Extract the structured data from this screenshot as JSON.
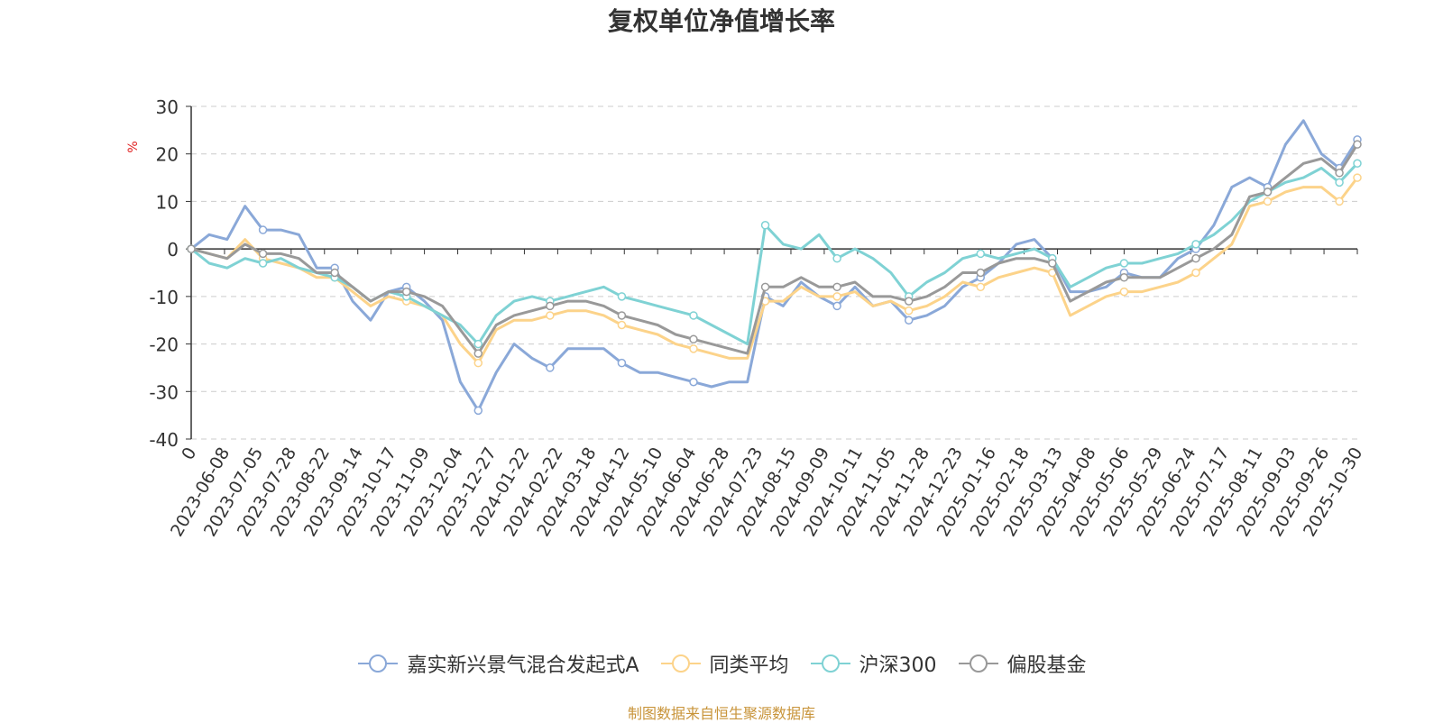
{
  "chart_data": {
    "type": "line",
    "title": "复权单位净值增长率",
    "ylabel": "%",
    "xlabel": "",
    "ylim": [
      -40,
      30
    ],
    "yticks": [
      30,
      20,
      10,
      0,
      -10,
      -20,
      -30,
      -40
    ],
    "grid": true,
    "legend_position": "bottom",
    "xticks": [
      "0",
      "2023-06-08",
      "2023-07-05",
      "2023-07-28",
      "2023-08-22",
      "2023-09-14",
      "2023-10-17",
      "2023-11-09",
      "2023-12-04",
      "2023-12-27",
      "2024-01-22",
      "2024-02-22",
      "2024-03-18",
      "2024-04-12",
      "2024-05-10",
      "2024-06-04",
      "2024-06-28",
      "2024-07-23",
      "2024-08-15",
      "2024-09-09",
      "2024-10-11",
      "2024-11-05",
      "2024-11-28",
      "2024-12-23",
      "2025-01-16",
      "2025-02-18",
      "2025-03-13",
      "2025-04-08",
      "2025-05-06",
      "2025-05-29",
      "2025-06-24",
      "2025-07-17",
      "2025-08-11",
      "2025-09-03",
      "2025-09-26",
      "2025-10-30"
    ],
    "series": [
      {
        "name": "嘉实新兴景气混合发起式A",
        "color": "#8aa8d8",
        "values": [
          0,
          3,
          2,
          9,
          4,
          4,
          3,
          -4,
          -4,
          -11,
          -15,
          -9,
          -8,
          -11,
          -15,
          -28,
          -34,
          -26,
          -20,
          -23,
          -25,
          -21,
          -21,
          -21,
          -24,
          -26,
          -26,
          -27,
          -28,
          -29,
          -28,
          -28,
          -10,
          -12,
          -7,
          -10,
          -12,
          -8,
          -12,
          -11,
          -15,
          -14,
          -12,
          -8,
          -6,
          -3,
          1,
          2,
          -2,
          -9,
          -9,
          -8,
          -5,
          -6,
          -6,
          -2,
          0,
          5,
          13,
          15,
          13,
          22,
          27,
          20,
          17,
          23
        ]
      },
      {
        "name": "同类平均",
        "color": "#fcd38a",
        "values": [
          0,
          -1,
          -2,
          2,
          -2,
          -3,
          -4,
          -6,
          -6,
          -9,
          -12,
          -10,
          -11,
          -12,
          -14,
          -20,
          -24,
          -17,
          -15,
          -15,
          -14,
          -13,
          -13,
          -14,
          -16,
          -17,
          -18,
          -20,
          -21,
          -22,
          -23,
          -23,
          -11,
          -11,
          -8,
          -10,
          -10,
          -9,
          -12,
          -11,
          -13,
          -12,
          -10,
          -7,
          -8,
          -6,
          -5,
          -4,
          -5,
          -14,
          -12,
          -10,
          -9,
          -9,
          -8,
          -7,
          -5,
          -2,
          1,
          9,
          10,
          12,
          13,
          13,
          10,
          15
        ]
      },
      {
        "name": "沪深300",
        "color": "#7fd2d4",
        "values": [
          0,
          -3,
          -4,
          -2,
          -3,
          -2,
          -4,
          -5,
          -6,
          -8,
          -11,
          -9,
          -10,
          -12,
          -14,
          -16,
          -20,
          -14,
          -11,
          -10,
          -11,
          -10,
          -9,
          -8,
          -10,
          -11,
          -12,
          -13,
          -14,
          -16,
          -18,
          -20,
          5,
          1,
          0,
          3,
          -2,
          0,
          -2,
          -5,
          -10,
          -7,
          -5,
          -2,
          -1,
          -2,
          -1,
          0,
          -2,
          -8,
          -6,
          -4,
          -3,
          -3,
          -2,
          -1,
          1,
          3,
          6,
          10,
          12,
          14,
          15,
          17,
          14,
          18
        ]
      },
      {
        "name": "偏股基金",
        "color": "#999999",
        "values": [
          0,
          -1,
          -2,
          1,
          -1,
          -1,
          -2,
          -5,
          -5,
          -8,
          -11,
          -9,
          -9,
          -10,
          -12,
          -17,
          -22,
          -16,
          -14,
          -13,
          -12,
          -11,
          -11,
          -12,
          -14,
          -15,
          -16,
          -18,
          -19,
          -20,
          -21,
          -22,
          -8,
          -8,
          -6,
          -8,
          -8,
          -7,
          -10,
          -10,
          -11,
          -10,
          -8,
          -5,
          -5,
          -3,
          -2,
          -2,
          -3,
          -11,
          -9,
          -7,
          -6,
          -6,
          -6,
          -4,
          -2,
          0,
          3,
          11,
          12,
          15,
          18,
          19,
          16,
          22
        ]
      }
    ]
  },
  "source_note": "制图数据来自恒生聚源数据库"
}
